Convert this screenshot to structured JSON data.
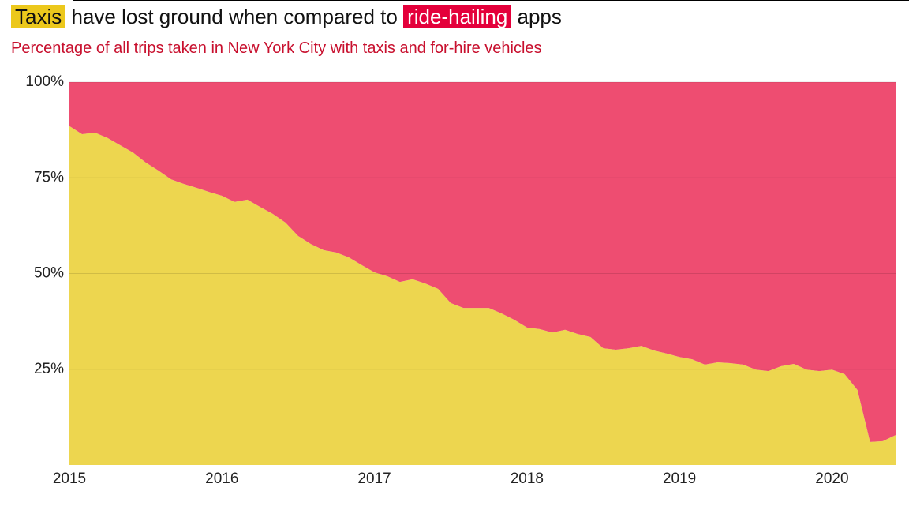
{
  "chart_data": {
    "type": "area",
    "title_middle": "have lost ground when compared to",
    "title_end": "apps",
    "subtitle": "Percentage of all trips taken in New York City with taxis and for-hire vehicles",
    "stacked": true,
    "x": [
      2015.0,
      2015.083,
      2015.167,
      2015.25,
      2015.333,
      2015.417,
      2015.5,
      2015.583,
      2015.667,
      2015.75,
      2015.833,
      2015.917,
      2016.0,
      2016.083,
      2016.167,
      2016.25,
      2016.333,
      2016.417,
      2016.5,
      2016.583,
      2016.667,
      2016.75,
      2016.833,
      2016.917,
      2017.0,
      2017.083,
      2017.167,
      2017.25,
      2017.333,
      2017.417,
      2017.5,
      2017.583,
      2017.667,
      2017.75,
      2017.833,
      2017.917,
      2018.0,
      2018.083,
      2018.167,
      2018.25,
      2018.333,
      2018.417,
      2018.5,
      2018.583,
      2018.667,
      2018.75,
      2018.833,
      2018.917,
      2019.0,
      2019.083,
      2019.167,
      2019.25,
      2019.333,
      2019.417,
      2019.5,
      2019.583,
      2019.667,
      2019.75,
      2019.833,
      2019.917,
      2020.0,
      2020.083,
      2020.167,
      2020.25,
      2020.333,
      2020.417
    ],
    "series": [
      {
        "name": "Taxis",
        "color": "#edd64f",
        "values": [
          88.5,
          86.4,
          86.8,
          85.4,
          83.5,
          81.6,
          79,
          76.9,
          74.6,
          73.4,
          72.4,
          71.3,
          70.3,
          68.7,
          69.3,
          67.4,
          65.6,
          63.3,
          59.8,
          57.7,
          56.1,
          55.5,
          54.2,
          52.2,
          50.3,
          49.3,
          47.8,
          48.5,
          47.4,
          46,
          42.3,
          41,
          41,
          41,
          39.6,
          37.9,
          35.9,
          35.5,
          34.6,
          35.3,
          34.2,
          33.4,
          30.5,
          30.1,
          30.5,
          31.1,
          29.9,
          29.1,
          28.2,
          27.6,
          26.2,
          26.8,
          26.6,
          26.2,
          24.9,
          24.5,
          25.8,
          26.4,
          24.9,
          24.5,
          24.9,
          23.7,
          19.6,
          6,
          6.2,
          7.8
        ]
      },
      {
        "name": "ride-hailing",
        "color": "#ee4d71",
        "values": [
          11.5,
          13.6,
          13.2,
          14.6,
          16.5,
          18.4,
          21,
          23.1,
          25.4,
          26.6,
          27.6,
          28.7,
          29.7,
          31.3,
          30.7,
          32.6,
          34.4,
          36.7,
          40.2,
          42.3,
          43.9,
          44.5,
          45.8,
          47.8,
          49.7,
          50.7,
          52.2,
          51.5,
          52.6,
          54,
          57.7,
          59,
          59,
          59,
          60.4,
          62.1,
          64.1,
          64.5,
          65.4,
          64.7,
          65.8,
          66.6,
          69.5,
          69.9,
          69.5,
          68.9,
          70.1,
          70.9,
          71.8,
          72.4,
          73.8,
          73.2,
          73.4,
          73.8,
          75.1,
          75.5,
          74.2,
          73.6,
          75.1,
          75.5,
          75.1,
          76.3,
          80.4,
          94,
          93.8,
          92.2
        ]
      }
    ],
    "xlim": [
      2015,
      2020.417
    ],
    "xticks": [
      2015,
      2016,
      2017,
      2018,
      2019,
      2020
    ],
    "ylim": [
      0,
      100
    ],
    "yticks": [
      {
        "value": 25,
        "label": "25%"
      },
      {
        "value": 50,
        "label": "50%"
      },
      {
        "value": 75,
        "label": "75%"
      },
      {
        "value": 100,
        "label": "100%"
      }
    ],
    "grid": true
  }
}
